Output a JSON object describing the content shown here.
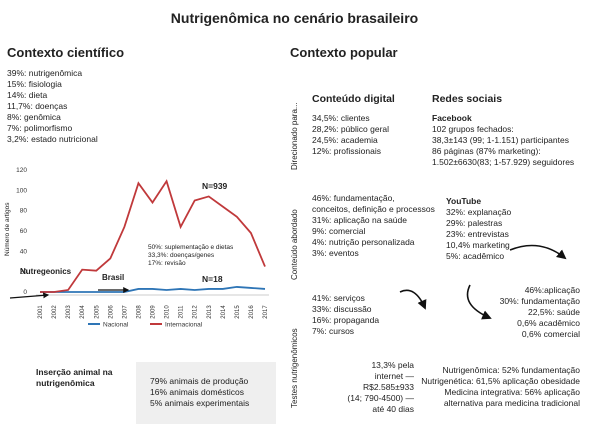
{
  "title": "Nutrigenômica no cenário brasaileiro",
  "scientific": {
    "heading": "Contexto científico",
    "stats": [
      "39%: nutrigenômica",
      "15%: fisiologia",
      "14%: dieta",
      "11,7%: doenças",
      "8%: genômica",
      "7%: polimorfismo",
      "3,2%: estado nutricional"
    ],
    "chart_note": [
      "50%: suplementação e dietas",
      "33,3%: doenças/genes",
      "17%: revisão"
    ],
    "label_n_inter": "N=939",
    "label_n_nac": "N=18",
    "label_nutrigeonics": "Nutregeonics",
    "label_brasil": "Brasil"
  },
  "chart_data": {
    "type": "line",
    "x": [
      "2001",
      "2002",
      "2003",
      "2004",
      "2005",
      "2006",
      "2007",
      "2008",
      "2009",
      "2010",
      "2011",
      "2012",
      "2013",
      "2014",
      "2015",
      "2016",
      "2017"
    ],
    "ylabel": "Número de artigos",
    "ylim": [
      0,
      120
    ],
    "yticks": [
      0,
      20,
      40,
      60,
      80,
      100,
      120
    ],
    "series": [
      {
        "name": "Nacional",
        "color": "#2e75b6",
        "values": [
          0,
          0,
          0,
          0,
          0,
          0,
          0,
          3,
          3,
          2,
          3,
          2,
          3,
          3,
          5,
          4,
          3
        ]
      },
      {
        "name": "Internacional",
        "color": "#c0393b",
        "values": [
          0,
          0,
          2,
          22,
          21,
          33,
          64,
          107,
          88,
          109,
          64,
          90,
          94,
          84,
          74,
          58,
          25
        ]
      }
    ],
    "legend_position": "bottom"
  },
  "animal": {
    "label": "Inserção animal na nutrigenômica",
    "items": [
      "79% animais de produção",
      "16% animais domésticos",
      "5% animais experimentais"
    ]
  },
  "popular": {
    "heading": "Contexto popular",
    "row_labels": [
      "Direcionado para...",
      "Conteúdo abordado",
      "Testes nutrigenômicos"
    ],
    "digital_heading": "Conteúdo digital",
    "social_heading": "Redes sociais",
    "digital_stats": [
      "34,5%: clientes",
      "28,2%: público geral",
      "24,5%: academia",
      "12%: profissionais"
    ],
    "facebook_title": "Facebook",
    "facebook_stats": [
      "102 grupos fechados:",
      "38,3±143 (99; 1-1.151) participantes",
      "86 páginas (87% marketing):",
      "1.502±6630(83; 1-57.929) seguidores"
    ],
    "content_stats": [
      "46%: fundamentação,",
      "conceitos, definição e processos",
      "31%: aplicação na saúde",
      "9%: comercial",
      "4%: nutrição personalizada",
      "3%: eventos"
    ],
    "youtube_title": "YouTube",
    "youtube_stats": [
      "32%: explanação",
      "29%: palestras",
      "23%: entrevistas",
      "10,4% marketing",
      "5%: acadêmico"
    ],
    "youtube_arrow_stats": [
      "46%:aplicação",
      "30%: fundamentação",
      "22,5%: saúde",
      "0,6% acadêmico",
      "0,6% comercial"
    ],
    "tests_stats": [
      "41%: serviços",
      "33%: discussão",
      "16%: propaganda",
      "7%: cursos"
    ],
    "price_lines": [
      "13,3% pela",
      "internet —",
      "R$2.585±933",
      "(14; 790-4500) —",
      "até 40 dias"
    ],
    "tests_right": [
      "Nutrigenômica: 52% fundamentação",
      "Nutrigenética: 61,5% aplicação obesidade",
      "Medicina integrativa: 56% aplicação",
      "alternativa para medicina tradicional"
    ]
  }
}
